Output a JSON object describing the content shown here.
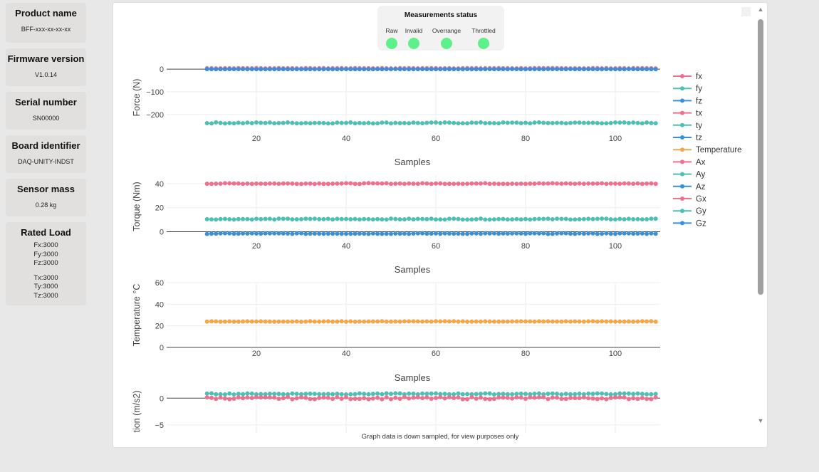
{
  "sidebar": {
    "product_name": {
      "title": "Product name",
      "value": "BFF-xxx-xx-xx-xx"
    },
    "firmware": {
      "title": "Firmware version",
      "value": "V1.0.14"
    },
    "serial": {
      "title": "Serial number",
      "value": "SN00000"
    },
    "board": {
      "title": "Board identifier",
      "value": "DAQ-UNITY-INDST"
    },
    "mass": {
      "title": "Sensor mass",
      "value": "0.28 kg"
    },
    "rated_load": {
      "title": "Rated Load",
      "force": [
        "Fx:3000",
        "Fy:3000",
        "Fz:3000"
      ],
      "torque": [
        "Tx:3000",
        "Ty:3000",
        "Tz:3000"
      ]
    }
  },
  "status": {
    "title": "Measurements status",
    "items": [
      {
        "label": "Raw",
        "color": "#5ef08a"
      },
      {
        "label": "Invalid",
        "color": "#5ef08a"
      },
      {
        "label": "Overrange",
        "color": "#5ef08a"
      },
      {
        "label": "Throttled",
        "color": "#5ef08a"
      }
    ]
  },
  "footnote": "Graph data is down sampled, for view purposes only",
  "chart_data": [
    {
      "type": "line",
      "title": "",
      "xlabel": "Samples",
      "ylabel": "Force (N)",
      "xlim": [
        0,
        110
      ],
      "ylim": [
        -260,
        10
      ],
      "yticks": [
        0,
        -100,
        -200
      ],
      "xticks": [
        20,
        40,
        60,
        80,
        100
      ],
      "x_start": 9,
      "x_end": 109,
      "series": [
        {
          "name": "fx",
          "color": "#ef6f8e",
          "level": 4,
          "noise": 0.6
        },
        {
          "name": "fz",
          "color": "#3a8fd6",
          "level": 0,
          "noise": 0.5
        },
        {
          "name": "fy",
          "color": "#4fbfb4",
          "level": -237,
          "noise": 2.5
        }
      ]
    },
    {
      "type": "line",
      "title": "",
      "xlabel": "Samples",
      "ylabel": "Torque (Nm)",
      "xlim": [
        0,
        110
      ],
      "ylim": [
        -5,
        47
      ],
      "yticks": [
        0,
        20,
        40
      ],
      "xticks": [
        20,
        40,
        60,
        80,
        100
      ],
      "x_start": 9,
      "x_end": 109,
      "series": [
        {
          "name": "tx",
          "color": "#ef6f8e",
          "level": 40,
          "noise": 0.3
        },
        {
          "name": "ty",
          "color": "#4fbfb4",
          "level": 10.5,
          "noise": 0.4
        },
        {
          "name": "tz",
          "color": "#3a8fd6",
          "level": -1.5,
          "noise": 0.3
        }
      ]
    },
    {
      "type": "line",
      "title": "",
      "xlabel": "Samples",
      "ylabel": "Temperature °C",
      "xlim": [
        0,
        110
      ],
      "ylim": [
        0,
        60
      ],
      "yticks": [
        0,
        20,
        40,
        60
      ],
      "xticks": [
        20,
        40,
        60,
        80,
        100
      ],
      "x_start": 9,
      "x_end": 109,
      "series": [
        {
          "name": "Temperature",
          "color": "#f5a54a",
          "level": 24,
          "noise": 0.2
        }
      ]
    },
    {
      "type": "line",
      "title": "",
      "xlabel": "",
      "ylabel": "tion (m/s2)",
      "xlim": [
        0,
        110
      ],
      "ylim": [
        -6.5,
        1.5
      ],
      "yticks": [
        0,
        -5
      ],
      "xticks": [],
      "x_start": 9,
      "x_end": 109,
      "series": [
        {
          "name": "Ay",
          "color": "#4fbfb4",
          "level": 0.8,
          "noise": 0.1
        },
        {
          "name": "Ax",
          "color": "#ef6f8e",
          "level": 0.0,
          "noise": 0.2
        }
      ]
    }
  ],
  "legend": [
    {
      "name": "fx",
      "color": "#ef6f8e"
    },
    {
      "name": "fy",
      "color": "#4fbfb4"
    },
    {
      "name": "fz",
      "color": "#3a8fd6"
    },
    {
      "name": "tx",
      "color": "#ef6f8e"
    },
    {
      "name": "ty",
      "color": "#4fbfb4"
    },
    {
      "name": "tz",
      "color": "#3a8fd6"
    },
    {
      "name": "Temperature",
      "color": "#f5a54a"
    },
    {
      "name": "Ax",
      "color": "#ef6f8e"
    },
    {
      "name": "Ay",
      "color": "#4fbfb4"
    },
    {
      "name": "Az",
      "color": "#3a8fd6"
    },
    {
      "name": "Gx",
      "color": "#ef6f8e"
    },
    {
      "name": "Gy",
      "color": "#4fbfb4"
    },
    {
      "name": "Gz",
      "color": "#3a8fd6"
    }
  ]
}
